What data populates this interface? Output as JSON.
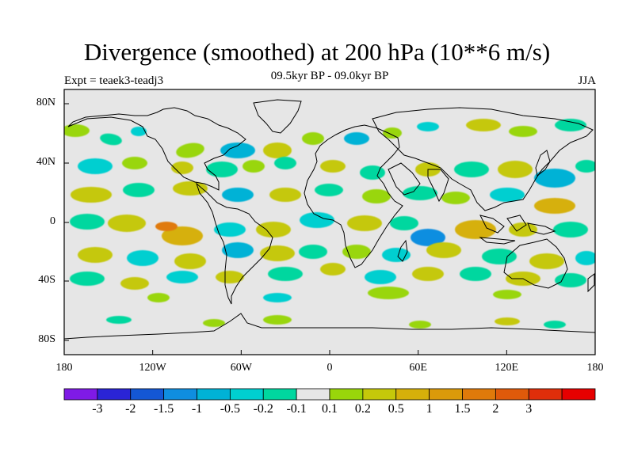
{
  "title": "Divergence (smoothed) at 200 hPa (10**6 m/s)",
  "subtitle": "09.5kyr BP - 09.0kyr BP",
  "left_label": "Expt = teaek3-teadj3",
  "right_label": "JJA",
  "lat_ticks": [
    "80N",
    "40N",
    "0",
    "40S",
    "80S"
  ],
  "lon_ticks": [
    "180",
    "120W",
    "60W",
    "0",
    "60E",
    "120E",
    "180"
  ],
  "colorbar": {
    "colors": [
      "#7f1ae6",
      "#2a24d6",
      "#1457d4",
      "#0f8ee0",
      "#00b2d6",
      "#00cfd0",
      "#00d79f",
      "#e6e6e6",
      "#99d60a",
      "#c5c80a",
      "#d6b00a",
      "#db9a0a",
      "#e07a0a",
      "#e05a0a",
      "#e02e0a",
      "#e60000"
    ],
    "labels": [
      "-3",
      "-2",
      "-1.5",
      "-1",
      "-0.5",
      "-0.2",
      "-0.1",
      "0.1",
      "0.2",
      "0.5",
      "1",
      "1.5",
      "2",
      "3"
    ]
  }
}
